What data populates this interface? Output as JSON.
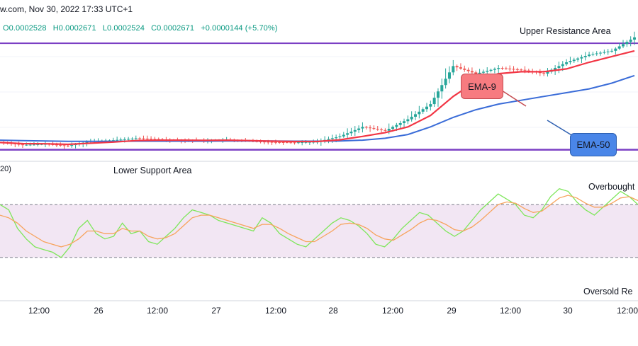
{
  "header": {
    "source_date": "w.com, Nov 30, 2022 17:33 UTC+1"
  },
  "ohlc": {
    "open": "O0.0002528",
    "high": "H0.0002671",
    "low": "L0.0002524",
    "close": "C0.0002671",
    "change": "+0.0000144 (+5.70%)"
  },
  "annotations": {
    "upper_resistance": "Upper Resistance Area",
    "lower_support": "Lower Support Area",
    "ema9": "EMA-9",
    "ema50": "EMA-50",
    "overbought": "Overbought",
    "oversold": "Oversold Re"
  },
  "rsi_label": "20)",
  "x_ticks": [
    "12:00",
    "26",
    "12:00",
    "27",
    "12:00",
    "28",
    "12:00",
    "29",
    "12:00",
    "30",
    "12:00"
  ],
  "colors": {
    "up_candle": "#26a69a",
    "down_candle": "#ef5350",
    "ema9": "#f23645",
    "ema50": "#3a6cd8",
    "level_line": "#7b3fc4",
    "rsi_fast": "#7ee65a",
    "rsi_slow": "#f7a35c",
    "rsi_band": "#f2e6f3",
    "ema9_callout": "#f77b80",
    "ema50_callout": "#4a86e8"
  },
  "chart_data": [
    {
      "type": "candlestick",
      "title": "",
      "x": [
        "25 06:00",
        "25 12:00",
        "25 18:00",
        "26 00:00",
        "26 06:00",
        "26 12:00",
        "26 18:00",
        "27 00:00",
        "27 06:00",
        "27 12:00",
        "27 18:00",
        "28 00:00",
        "28 06:00",
        "28 12:00",
        "28 18:00",
        "29 00:00",
        "29 03:00",
        "29 06:00",
        "29 09:00",
        "29 12:00",
        "29 15:00",
        "29 18:00",
        "29 21:00",
        "30 00:00",
        "30 03:00",
        "30 06:00",
        "30 09:00",
        "30 12:00",
        "30 15:00"
      ],
      "close": [
        0.000212,
        0.0002105,
        0.000211,
        0.00021,
        0.0002125,
        0.000213,
        0.000214,
        0.0002135,
        0.000213,
        0.0002128,
        0.0002132,
        0.0002125,
        0.000212,
        0.0002118,
        0.0002122,
        0.000215,
        0.00022,
        0.000218,
        0.000224,
        0.000232,
        0.000252,
        0.000248,
        0.000251,
        0.00025,
        0.000248,
        0.000254,
        0.000258,
        0.00026,
        0.0002671
      ],
      "ema9": [
        0.0002118,
        0.0002112,
        0.0002111,
        0.0002108,
        0.0002114,
        0.000212,
        0.0002128,
        0.000213,
        0.000213,
        0.0002129,
        0.000213,
        0.0002128,
        0.0002125,
        0.0002123,
        0.0002123,
        0.0002132,
        0.000215,
        0.000217,
        0.00022,
        0.000226,
        0.000236,
        0.000244,
        0.000248,
        0.000249,
        0.000249,
        0.0002505,
        0.000254,
        0.000257,
        0.00026
      ],
      "ema50": [
        0.000213,
        0.0002128,
        0.0002126,
        0.0002124,
        0.0002124,
        0.0002124,
        0.0002125,
        0.0002125,
        0.0002125,
        0.0002125,
        0.0002126,
        0.0002126,
        0.0002126,
        0.0002125,
        0.0002125,
        0.0002126,
        0.000213,
        0.000214,
        0.000216,
        0.00022,
        0.000225,
        0.000229,
        0.000232,
        0.000234,
        0.000236,
        0.000238,
        0.00024,
        0.000243,
        0.000247
      ],
      "upper_resistance": 0.000264,
      "lower_support": 0.000208
    },
    {
      "type": "line",
      "title": "",
      "series": [
        {
          "values": [
            70,
            66,
            52,
            44,
            38,
            36,
            34,
            30,
            38,
            52,
            58,
            48,
            44,
            46,
            56,
            48,
            50,
            42,
            40,
            46,
            52,
            60,
            66,
            64,
            62,
            58,
            56,
            54,
            52,
            50,
            60,
            56,
            48,
            44,
            40,
            38,
            44,
            50,
            56,
            60,
            58,
            54,
            48,
            40,
            38,
            44,
            52,
            58,
            64,
            62,
            56,
            50,
            46,
            50,
            58,
            66,
            72,
            78,
            74,
            70,
            62,
            60,
            66,
            76,
            82,
            80,
            72,
            66,
            62,
            68,
            74,
            80,
            76,
            70
          ]
        },
        {
          "values": [
            62,
            60,
            56,
            50,
            46,
            42,
            40,
            38,
            40,
            44,
            50,
            50,
            48,
            48,
            52,
            50,
            50,
            46,
            44,
            45,
            48,
            54,
            60,
            62,
            62,
            60,
            58,
            56,
            54,
            52,
            55,
            55,
            52,
            48,
            45,
            42,
            42,
            46,
            50,
            55,
            56,
            55,
            52,
            47,
            44,
            43,
            47,
            51,
            56,
            59,
            58,
            55,
            51,
            50,
            53,
            58,
            64,
            70,
            72,
            71,
            67,
            64,
            65,
            70,
            75,
            77,
            75,
            71,
            68,
            68,
            71,
            75,
            76,
            73
          ]
        }
      ],
      "ylim": [
        0,
        100
      ],
      "levels": [
        70,
        30
      ]
    }
  ]
}
